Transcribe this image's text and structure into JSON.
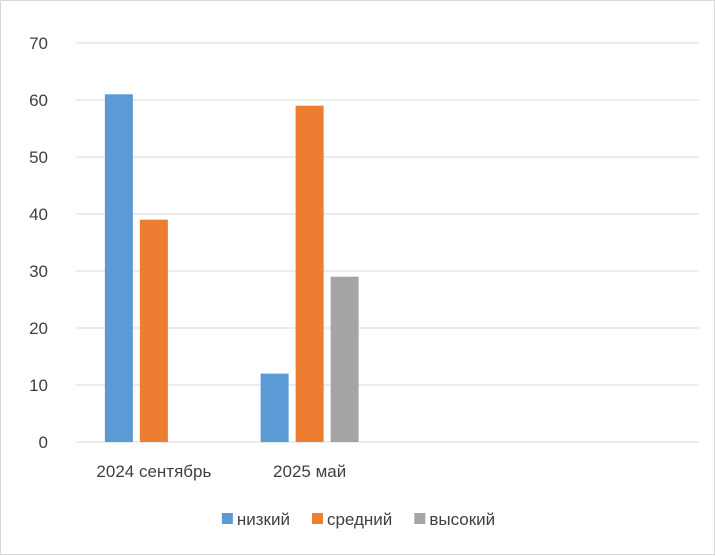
{
  "chart_data": {
    "type": "bar",
    "categories": [
      "2024 сентябрь",
      "2025 май",
      "",
      ""
    ],
    "series": [
      {
        "name": "низкий",
        "color": "#5b9bd5",
        "values": [
          61,
          12,
          null,
          null
        ]
      },
      {
        "name": "средний",
        "color": "#ed7d31",
        "values": [
          39,
          59,
          null,
          null
        ]
      },
      {
        "name": "высокий",
        "color": "#a5a5a5",
        "values": [
          null,
          29,
          null,
          null
        ]
      }
    ],
    "title": "",
    "xlabel": "",
    "ylabel": "",
    "ylim": [
      0,
      70
    ],
    "yticks": [
      0,
      10,
      20,
      30,
      40,
      50,
      60,
      70
    ],
    "grid": true,
    "legend_position": "bottom",
    "colors": {
      "gridline": "#d9d9d9",
      "axis": "#d9d9d9",
      "text": "#404040",
      "border": "#d9d9d9"
    }
  }
}
